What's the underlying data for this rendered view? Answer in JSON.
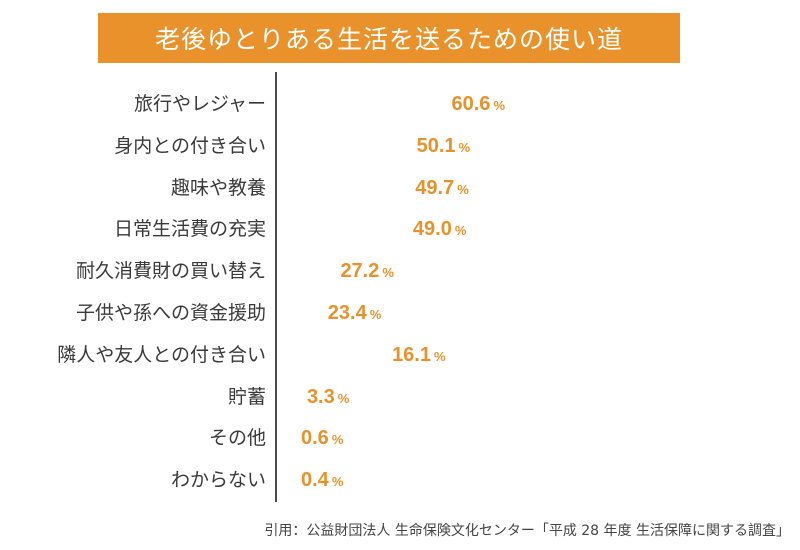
{
  "title": "老後ゆとりある生活を送るための使い道",
  "citation": "引用：公益財団法人 生命保険文化センター「平成 28 年度 生活保障に関する調査」",
  "colors": {
    "accent": "#E9922B",
    "bar": "#FBE6D2",
    "axis": "#4a4a4a",
    "text": "#3a3a3a"
  },
  "chart_data": {
    "type": "bar",
    "orientation": "horizontal",
    "title": "老後ゆとりある生活を送るための使い道",
    "categories": [
      "旅行やレジャー",
      "身内との付き合い",
      "趣味や教養",
      "日常生活費の充実",
      "耐久消費財の買い替え",
      "子供や孫への資金援助",
      "隣人や友人との付き合い",
      "貯蓄",
      "その他",
      "わからない"
    ],
    "values": [
      60.6,
      50.1,
      49.7,
      49.0,
      27.2,
      23.4,
      16.1,
      3.3,
      0.6,
      0.4
    ],
    "value_labels": [
      "60.6",
      "50.1",
      "49.7",
      "49.0",
      "27.2",
      "23.4",
      "16.1",
      "3.3",
      "0.6",
      "0.4"
    ],
    "unit": "%",
    "grid": false
  }
}
